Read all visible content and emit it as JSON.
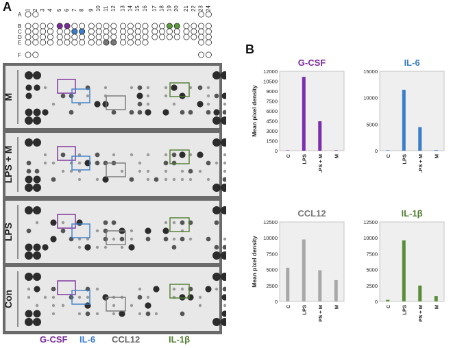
{
  "panel_a": {
    "letter": "A",
    "column_numbers": [
      "1",
      "2",
      "3",
      "4",
      "5",
      "6",
      "7",
      "8",
      "9",
      "10",
      "11",
      "12",
      "13",
      "14",
      "15",
      "16",
      "17",
      "18",
      "19",
      "20",
      "21",
      "22",
      "23",
      "24"
    ],
    "row_letters": [
      "A",
      "B",
      "C",
      "D",
      "E",
      "F"
    ],
    "conditions": [
      "M",
      "LPS + M",
      "LPS",
      "Con"
    ],
    "legend": [
      {
        "label": "G-CSF",
        "color": "#7b2c9a"
      },
      {
        "label": "IL-6",
        "color": "#3b7ec9"
      },
      {
        "label": "CCL12",
        "color": "#666666"
      },
      {
        "label": "IL-1β",
        "color": "#4e7d2f"
      }
    ]
  },
  "panel_b": {
    "letter": "B"
  },
  "chart_data": [
    {
      "type": "bar",
      "title": "G-CSF",
      "title_color": "#7b2c9a",
      "bar_color": "#7b2fb0",
      "categories": [
        "C",
        "LPS",
        "LPS + M",
        "M"
      ],
      "values": [
        50,
        11150,
        4450,
        60
      ],
      "ylabel": "Mean pixel density",
      "ylim": [
        0,
        12000
      ],
      "yticks": [
        "0",
        "1500",
        "3000",
        "4500",
        "6000",
        "7500",
        "9000",
        "10500",
        "12000"
      ],
      "grid": false
    },
    {
      "type": "bar",
      "title": "IL-6",
      "title_color": "#3b7ec9",
      "bar_color": "#3b7ec9",
      "categories": [
        "C",
        "LPS",
        "LPS + M",
        "M"
      ],
      "values": [
        80,
        11500,
        4450,
        100
      ],
      "ylabel": "",
      "ylim": [
        0,
        15000
      ],
      "yticks": [
        "0",
        "5000",
        "10000",
        "15000"
      ],
      "grid": false
    },
    {
      "type": "bar",
      "title": "CCL12",
      "title_color": "#777777",
      "bar_color": "#a8a8a8",
      "categories": [
        "C",
        "LPS",
        "LPS + M",
        "M"
      ],
      "values": [
        5300,
        9750,
        4900,
        3350
      ],
      "ylabel": "Mean pixel density",
      "ylim": [
        0,
        12500
      ],
      "yticks": [
        "0",
        "2500",
        "5000",
        "7500",
        "10000",
        "12500"
      ],
      "grid": false
    },
    {
      "type": "bar",
      "title": "IL-1β",
      "title_color": "#4e7d2f",
      "bar_color": "#5a8d3a",
      "categories": [
        "C",
        "LPS",
        "LPS + M",
        "M"
      ],
      "values": [
        250,
        9600,
        2500,
        850
      ],
      "ylabel": "",
      "ylim": [
        0,
        12500
      ],
      "yticks": [
        "0",
        "2500",
        "5000",
        "7500",
        "10000",
        "12500"
      ],
      "grid": false
    }
  ]
}
